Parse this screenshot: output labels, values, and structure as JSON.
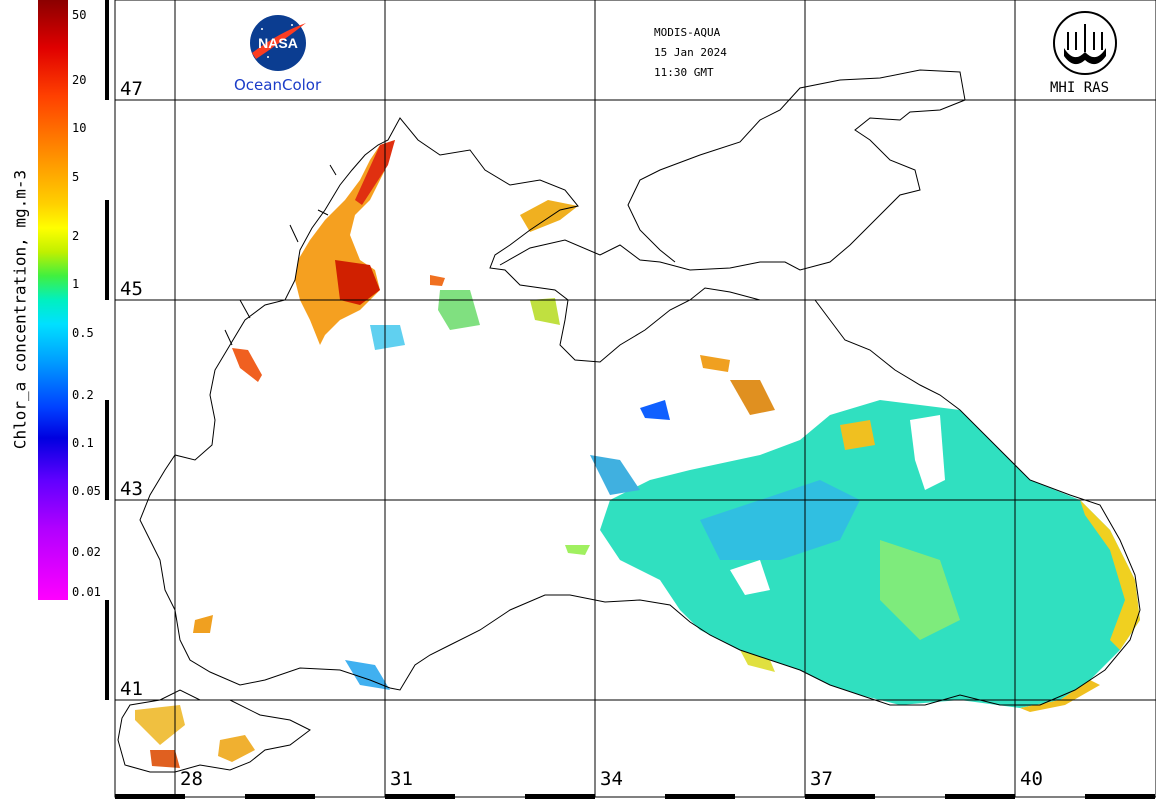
{
  "header": {
    "sensor": "MODIS-AQUA",
    "date": "15 Jan 2024",
    "time": "11:30 GMT"
  },
  "logos": {
    "nasa_caption": "OceanColor",
    "nasa_wordmark": "NASA",
    "mhi_caption": "MHI RAS"
  },
  "colorbar": {
    "title": "Chlor_a concentration, mg.m-3",
    "ticks": [
      "50",
      "20",
      "10",
      "5",
      "2",
      "1",
      "0.5",
      "0.2",
      "0.1",
      "0.05",
      "0.02",
      "0.01"
    ]
  },
  "grid": {
    "latitudes": [
      "47",
      "45",
      "43",
      "41"
    ],
    "longitudes": [
      "28",
      "31",
      "34",
      "37",
      "40"
    ]
  }
}
